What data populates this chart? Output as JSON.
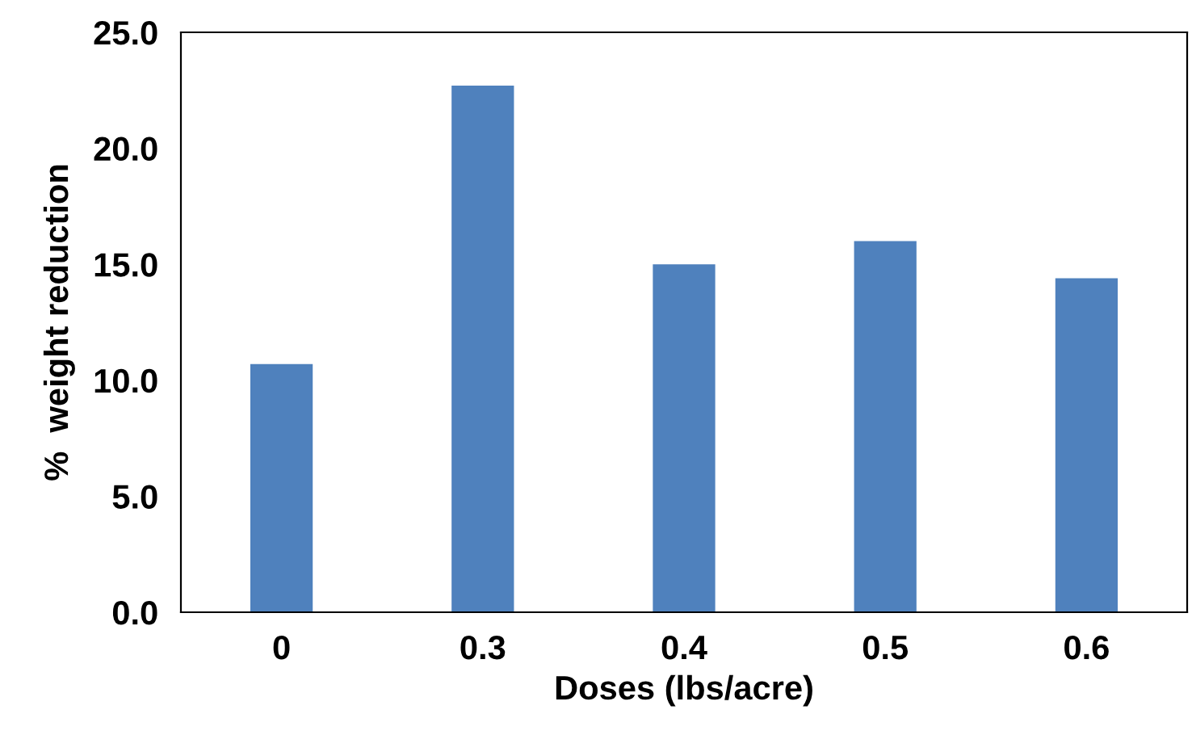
{
  "chart_data": {
    "type": "bar",
    "xlabel": "Doses (lbs/acre)",
    "ylabel": "%  weight reduction",
    "categories": [
      "0",
      "0.3",
      "0.4",
      "0.5",
      "0.6"
    ],
    "values": [
      10.7,
      22.7,
      15.0,
      16.0,
      14.4
    ],
    "color": "#4f81bd",
    "ylim": [
      0,
      25
    ],
    "yticks": [
      {
        "value": 0,
        "label": "0.0"
      },
      {
        "value": 5,
        "label": "5.0"
      },
      {
        "value": 10,
        "label": "10.0"
      },
      {
        "value": 15,
        "label": "15.0"
      },
      {
        "value": 20,
        "label": "20.0"
      },
      {
        "value": 25,
        "label": "25.0"
      }
    ],
    "grid": false,
    "legend": false
  }
}
